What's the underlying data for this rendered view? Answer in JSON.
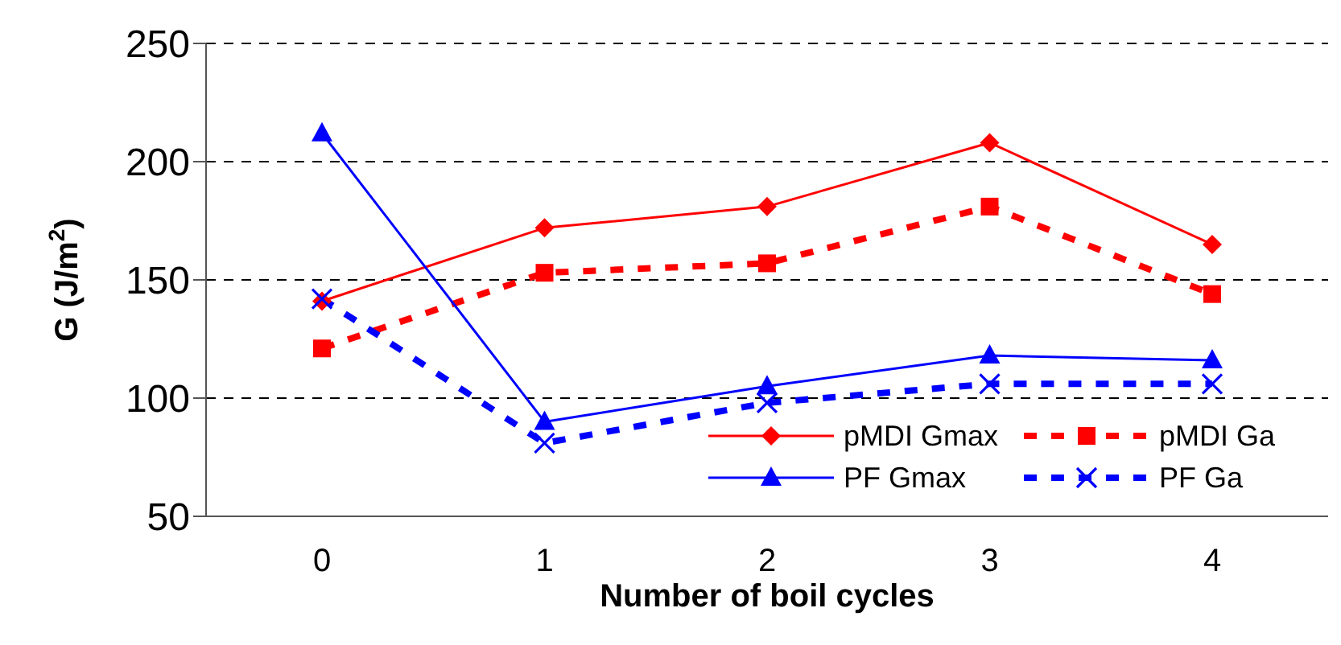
{
  "chart_data": {
    "type": "line",
    "xlabel": "Number of boil cycles",
    "ylabel": "G (J/m$^{2}$)",
    "categories": [
      "0",
      "1",
      "2",
      "3",
      "4"
    ],
    "ylim": [
      50,
      250
    ],
    "yticks": [
      50,
      100,
      150,
      200,
      250
    ],
    "grid": "y",
    "legend": "bottom right",
    "series": [
      {
        "name": "pMDI Gmax",
        "color": "#ff0000",
        "marker": "diamond",
        "line_style": "solid",
        "values": [
          141,
          172,
          181,
          208,
          165
        ]
      },
      {
        "name": "pMDI Ga",
        "color": "#ff0000",
        "marker": "square",
        "line_style": "dashed",
        "values": [
          121,
          153,
          157,
          181,
          144
        ]
      },
      {
        "name": "PF Gmax",
        "color": "#0000ff",
        "marker": "triangle",
        "line_style": "solid",
        "values": [
          212,
          90,
          105,
          118,
          116
        ]
      },
      {
        "name": "PF Ga",
        "color": "#0000ff",
        "marker": "cross",
        "line_style": "dashed",
        "values": [
          142,
          81,
          98,
          106,
          106
        ]
      }
    ]
  }
}
